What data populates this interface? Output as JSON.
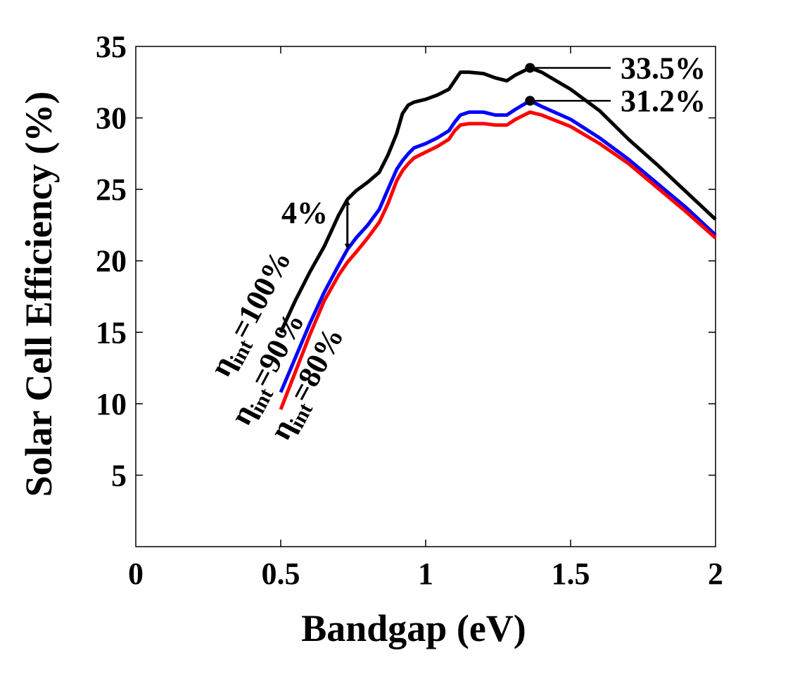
{
  "chart_data": {
    "type": "line",
    "xlabel": "Bandgap (eV)",
    "ylabel": "Solar Cell Efficiency (%)",
    "xlim": [
      0,
      2
    ],
    "ylim": [
      0,
      35
    ],
    "xticks": [
      "0",
      "0.5",
      "1",
      "1.5",
      "2"
    ],
    "yticks": [
      "5",
      "10",
      "15",
      "20",
      "25",
      "30",
      "35"
    ],
    "grid": false,
    "series": [
      {
        "name": "η_int=100%",
        "label_eta": "η",
        "label_sub": "int",
        "label_rest": "=100%",
        "color": "#000000",
        "x": [
          0.5,
          0.55,
          0.6,
          0.65,
          0.7,
          0.73,
          0.76,
          0.8,
          0.84,
          0.87,
          0.9,
          0.92,
          0.94,
          0.96,
          1.0,
          1.04,
          1.08,
          1.1,
          1.12,
          1.15,
          1.2,
          1.24,
          1.28,
          1.31,
          1.36,
          1.4,
          1.5,
          1.6,
          1.7,
          1.8,
          1.9,
          2.0
        ],
        "y": [
          15.0,
          17.2,
          19.2,
          21.0,
          23.2,
          24.3,
          24.9,
          25.5,
          26.2,
          27.4,
          28.9,
          30.3,
          30.9,
          31.1,
          31.3,
          31.6,
          32.0,
          32.6,
          33.2,
          33.2,
          33.1,
          32.8,
          32.6,
          33.0,
          33.5,
          33.2,
          32.0,
          30.5,
          28.5,
          26.7,
          24.8,
          22.9
        ]
      },
      {
        "name": "η_int=90%",
        "label_eta": "η",
        "label_sub": "int",
        "label_rest": "=90%",
        "color": "#0000ff",
        "x": [
          0.5,
          0.55,
          0.6,
          0.65,
          0.7,
          0.73,
          0.76,
          0.8,
          0.84,
          0.87,
          0.9,
          0.92,
          0.94,
          0.96,
          1.0,
          1.04,
          1.08,
          1.1,
          1.12,
          1.15,
          1.2,
          1.24,
          1.28,
          1.31,
          1.36,
          1.4,
          1.5,
          1.6,
          1.7,
          1.8,
          1.9,
          2.0
        ],
        "y": [
          10.8,
          13.2,
          15.6,
          17.8,
          19.7,
          20.8,
          21.6,
          22.5,
          23.6,
          25.0,
          26.4,
          27.0,
          27.5,
          27.9,
          28.2,
          28.6,
          29.1,
          29.7,
          30.2,
          30.4,
          30.4,
          30.2,
          30.2,
          30.6,
          31.2,
          30.8,
          29.9,
          28.6,
          27.1,
          25.4,
          23.7,
          21.8
        ]
      },
      {
        "name": "η_int=80%",
        "label_eta": "η",
        "label_sub": "int",
        "label_rest": "=80%",
        "color": "#ff0000",
        "x": [
          0.5,
          0.55,
          0.6,
          0.65,
          0.7,
          0.73,
          0.76,
          0.8,
          0.84,
          0.87,
          0.9,
          0.92,
          0.94,
          0.96,
          1.0,
          1.04,
          1.08,
          1.1,
          1.12,
          1.15,
          1.2,
          1.24,
          1.28,
          1.31,
          1.36,
          1.4,
          1.5,
          1.6,
          1.7,
          1.8,
          1.9,
          2.0
        ],
        "y": [
          9.6,
          12.2,
          14.8,
          17.2,
          19.0,
          19.9,
          20.6,
          21.6,
          22.7,
          24.0,
          25.6,
          26.3,
          26.8,
          27.2,
          27.6,
          28.0,
          28.5,
          29.1,
          29.5,
          29.6,
          29.6,
          29.5,
          29.5,
          29.9,
          30.4,
          30.2,
          29.4,
          28.2,
          26.8,
          25.1,
          23.4,
          21.6
        ]
      }
    ],
    "annotations": [
      {
        "text": "33.5%",
        "x": 1.36,
        "y": 33.5
      },
      {
        "text": "31.2%",
        "x": 1.36,
        "y": 31.2
      },
      {
        "text": "4%",
        "x": 0.73,
        "y1": 24.3,
        "y2": 20.8
      }
    ]
  }
}
